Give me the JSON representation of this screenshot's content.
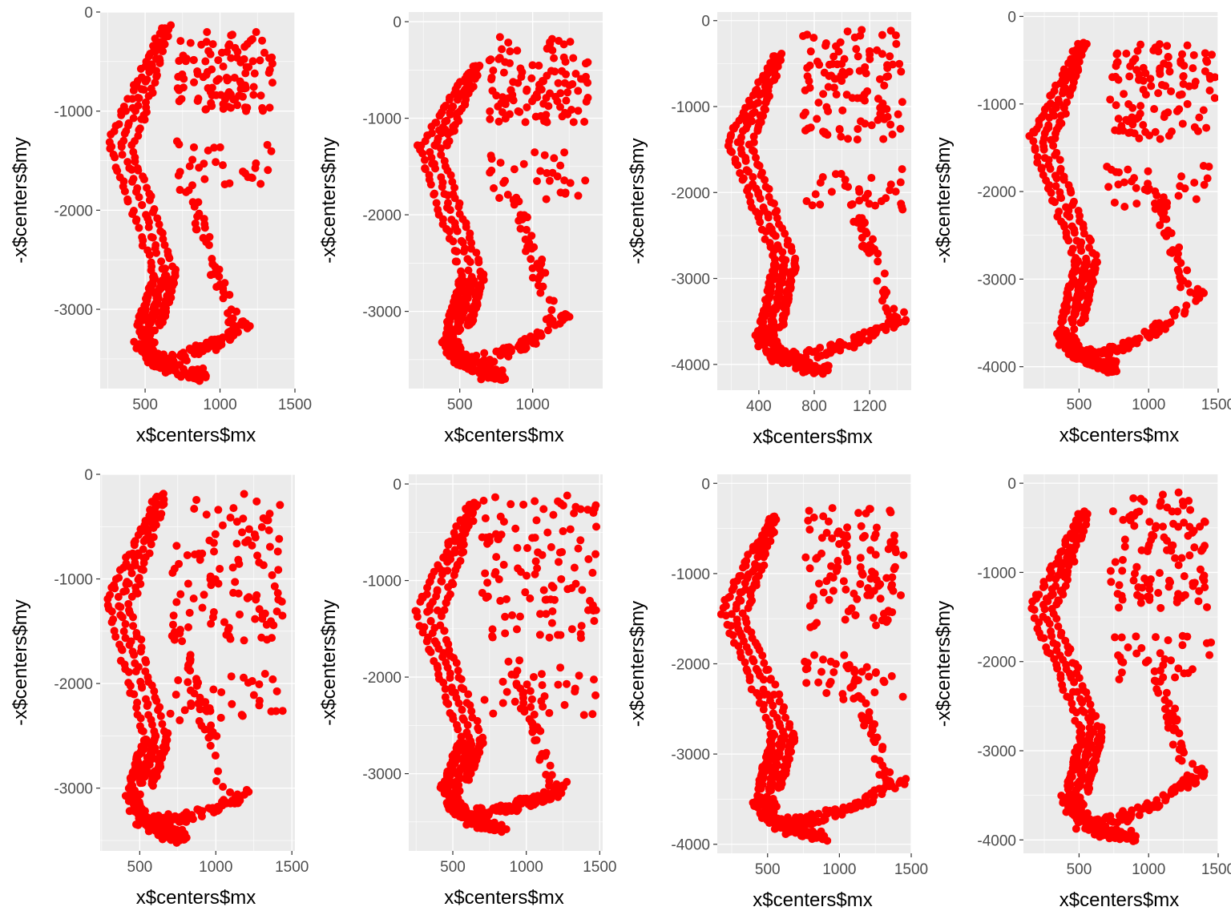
{
  "colors": {
    "panel": "#ebebeb",
    "grid": "#ffffff",
    "point": "#ff0000",
    "tick_text": "#4d4d4d"
  },
  "chart_data": [
    {
      "type": "scatter",
      "xlabel": "x$centers$mx",
      "ylabel": "-x$centers$my",
      "xlim": [
        200,
        1500
      ],
      "ylim": [
        -3800,
        0
      ],
      "xticks": [
        500,
        1000,
        1500
      ],
      "xtick_labels": [
        "500",
        "1000",
        "1500"
      ],
      "yticks": [
        0,
        -1000,
        -2000,
        -3000
      ],
      "ytick_labels": [
        "0",
        "-1000",
        "-2000",
        "-3000"
      ],
      "grid": true,
      "shape": {
        "top_y": -150,
        "left_arm_x": 620,
        "outer_x": 260,
        "upper_bend_y": -1300,
        "lower_x": 420,
        "bottom_y": -3600,
        "bottom_center_x": 900,
        "right_arm_x": 1100,
        "right_arm_y": -3200,
        "cap": [
          [
            700,
            -200
          ],
          [
            1350,
            -1000
          ]
        ],
        "seed": 11
      }
    },
    {
      "type": "scatter",
      "xlabel": "x$centers$mx",
      "ylabel": "-x$centers$my",
      "xlim": [
        150,
        1480
      ],
      "ylim": [
        -3800,
        100
      ],
      "xticks": [
        500,
        1000
      ],
      "xtick_labels": [
        "500",
        "1000"
      ],
      "yticks": [
        0,
        -1000,
        -2000,
        -3000
      ],
      "ytick_labels": [
        "0",
        "-1000",
        "-2000",
        "-3000"
      ],
      "grid": true,
      "shape": {
        "top_y": -450,
        "left_arm_x": 600,
        "outer_x": 220,
        "upper_bend_y": -1300,
        "lower_x": 380,
        "bottom_y": -3600,
        "bottom_center_x": 800,
        "right_arm_x": 1150,
        "right_arm_y": -3100,
        "cap": [
          [
            700,
            -150
          ],
          [
            1380,
            -1050
          ]
        ],
        "seed": 22
      }
    },
    {
      "type": "scatter",
      "xlabel": "x$centers$mx",
      "ylabel": "-x$centers$my",
      "xlim": [
        100,
        1500
      ],
      "ylim": [
        -4300,
        100
      ],
      "xticks": [
        400,
        800,
        1200
      ],
      "xtick_labels": [
        "400",
        "800",
        "1200"
      ],
      "yticks": [
        0,
        -1000,
        -2000,
        -3000,
        -4000
      ],
      "ytick_labels": [
        "0",
        "-1000",
        "-2000",
        "-3000",
        "-4000"
      ],
      "grid": true,
      "shape": {
        "top_y": -400,
        "left_arm_x": 520,
        "outer_x": 180,
        "upper_bend_y": -1400,
        "lower_x": 380,
        "bottom_y": -4000,
        "bottom_center_x": 900,
        "right_arm_x": 1380,
        "right_arm_y": -3500,
        "cap": [
          [
            700,
            -50
          ],
          [
            1450,
            -1400
          ]
        ],
        "seed": 33
      }
    },
    {
      "type": "scatter",
      "xlabel": "x$centers$mx",
      "ylabel": "-x$centers$my",
      "xlim": [
        100,
        1500
      ],
      "ylim": [
        -4250,
        50
      ],
      "xticks": [
        500,
        1000,
        1500
      ],
      "xtick_labels": [
        "500",
        "1000",
        "1500"
      ],
      "yticks": [
        0,
        -1000,
        -2000,
        -3000,
        -4000
      ],
      "ytick_labels": [
        "0",
        "-1000",
        "-2000",
        "-3000",
        "-4000"
      ],
      "grid": true,
      "shape": {
        "top_y": -300,
        "left_arm_x": 500,
        "outer_x": 150,
        "upper_bend_y": -1400,
        "lower_x": 340,
        "bottom_y": -3950,
        "bottom_center_x": 800,
        "right_arm_x": 1300,
        "right_arm_y": -3200,
        "cap": [
          [
            700,
            -200
          ],
          [
            1480,
            -1400
          ]
        ],
        "seed": 44
      }
    },
    {
      "type": "scatter",
      "xlabel": "x$centers$mx",
      "ylabel": "-x$centers$my",
      "xlim": [
        240,
        1520
      ],
      "ylim": [
        -3600,
        0
      ],
      "xticks": [
        500,
        1000,
        1500
      ],
      "xtick_labels": [
        "500",
        "1000",
        "1500"
      ],
      "yticks": [
        0,
        -1000,
        -2000,
        -3000
      ],
      "ytick_labels": [
        "0",
        "-1000",
        "-2000",
        "-3000"
      ],
      "grid": true,
      "shape": {
        "top_y": -200,
        "left_arm_x": 620,
        "outer_x": 280,
        "upper_bend_y": -1200,
        "lower_x": 400,
        "bottom_y": -3400,
        "bottom_center_x": 800,
        "right_arm_x": 1100,
        "right_arm_y": -3150,
        "cap": [
          [
            700,
            -150
          ],
          [
            1450,
            -1600
          ]
        ],
        "seed": 55
      }
    },
    {
      "type": "scatter",
      "xlabel": "x$centers$mx",
      "ylabel": "-x$centers$my",
      "xlim": [
        200,
        1520
      ],
      "ylim": [
        -3800,
        100
      ],
      "xticks": [
        500,
        1000,
        1500
      ],
      "xtick_labels": [
        "500",
        "1000",
        "1500"
      ],
      "yticks": [
        0,
        -1000,
        -2000,
        -3000
      ],
      "ytick_labels": [
        "0",
        "-1000",
        "-2000",
        "-3000"
      ],
      "grid": true,
      "shape": {
        "top_y": -200,
        "left_arm_x": 620,
        "outer_x": 250,
        "upper_bend_y": -1300,
        "lower_x": 420,
        "bottom_y": -3500,
        "bottom_center_x": 850,
        "right_arm_x": 1200,
        "right_arm_y": -3200,
        "cap": [
          [
            700,
            -100
          ],
          [
            1480,
            -1600
          ]
        ],
        "seed": 66
      }
    },
    {
      "type": "scatter",
      "xlabel": "x$centers$mx",
      "ylabel": "-x$centers$my",
      "xlim": [
        150,
        1500
      ],
      "ylim": [
        -4100,
        100
      ],
      "xticks": [
        500,
        1000,
        1500
      ],
      "xtick_labels": [
        "500",
        "1000",
        "1500"
      ],
      "yticks": [
        0,
        -1000,
        -2000,
        -3000,
        -4000
      ],
      "ytick_labels": [
        "0",
        "-1000",
        "-2000",
        "-3000",
        "-4000"
      ],
      "grid": true,
      "shape": {
        "top_y": -380,
        "left_arm_x": 520,
        "outer_x": 180,
        "upper_bend_y": -1400,
        "lower_x": 400,
        "bottom_y": -3850,
        "bottom_center_x": 900,
        "right_arm_x": 1350,
        "right_arm_y": -3350,
        "cap": [
          [
            750,
            -200
          ],
          [
            1450,
            -1600
          ]
        ],
        "seed": 77
      }
    },
    {
      "type": "scatter",
      "xlabel": "x$centers$mx",
      "ylabel": "-x$centers$my",
      "xlim": [
        100,
        1500
      ],
      "ylim": [
        -4150,
        100
      ],
      "xticks": [
        500,
        1000,
        1500
      ],
      "xtick_labels": [
        "500",
        "1000",
        "1500"
      ],
      "yticks": [
        0,
        -1000,
        -2000,
        -3000,
        -4000
      ],
      "ytick_labels": [
        "0",
        "-1000",
        "-2000",
        "-3000",
        "-4000"
      ],
      "grid": true,
      "shape": {
        "top_y": -330,
        "left_arm_x": 520,
        "outer_x": 160,
        "upper_bend_y": -1400,
        "lower_x": 380,
        "bottom_y": -3900,
        "bottom_center_x": 900,
        "right_arm_x": 1300,
        "right_arm_y": -3300,
        "cap": [
          [
            720,
            -100
          ],
          [
            1450,
            -1400
          ]
        ],
        "seed": 88
      }
    }
  ]
}
